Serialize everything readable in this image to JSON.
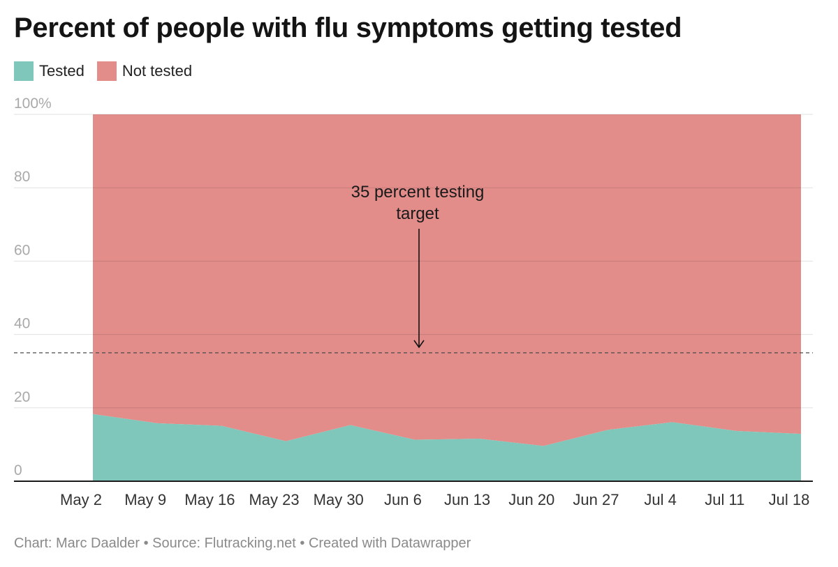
{
  "title": "Percent of people with flu symptoms getting tested",
  "footer": "Chart: Marc Daalder • Source: Flutracking.net • Created with Datawrapper",
  "colors": {
    "tested": "#7fc7ba",
    "not_tested": "#e28d8a",
    "axis": "#1a1a1a",
    "grid": "#d6d6d6"
  },
  "chart_data": {
    "type": "area",
    "stacked": true,
    "percent_stacked": true,
    "x": [
      "May 2",
      "May 9",
      "May 16",
      "May 23",
      "May 30",
      "Jun 6",
      "Jun 13",
      "Jun 20",
      "Jun 27",
      "Jul 4",
      "Jul 11",
      "Jul 18"
    ],
    "series": [
      {
        "name": "Tested",
        "values": [
          18.3,
          15.8,
          15.1,
          10.9,
          15.3,
          11.3,
          11.6,
          9.6,
          14.0,
          16.1,
          13.7,
          12.9
        ]
      },
      {
        "name": "Not tested",
        "values": [
          81.7,
          84.2,
          84.9,
          89.1,
          84.7,
          88.7,
          88.4,
          90.4,
          86.0,
          83.9,
          86.3,
          87.1
        ]
      }
    ],
    "ylim": [
      0,
      100
    ],
    "yticks": [
      "0",
      "20",
      "40",
      "60",
      "80",
      "100%"
    ],
    "ytick_values": [
      0,
      20,
      40,
      60,
      80,
      100
    ],
    "grid": true,
    "legend": "top-left",
    "reference_line": {
      "value": 35,
      "style": "dashed"
    },
    "annotation": {
      "lines": [
        "35 percent testing",
        "target"
      ],
      "x": "Jun 6",
      "points_to": 35
    }
  }
}
